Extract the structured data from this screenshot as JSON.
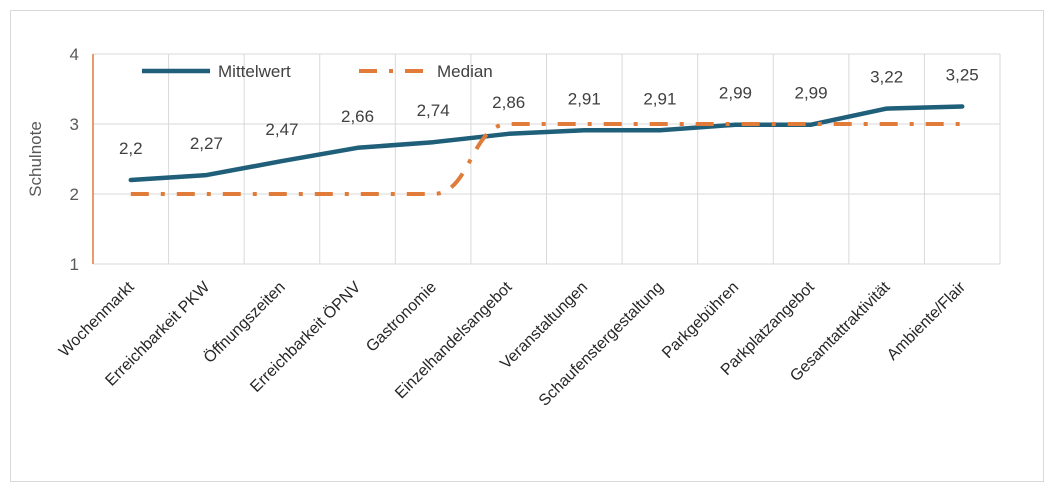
{
  "chart_data": {
    "type": "line",
    "ylabel": "Schulnote",
    "xlabel": "",
    "ylim": [
      1,
      4
    ],
    "yticks": [
      "1",
      "2",
      "3",
      "4"
    ],
    "grid": true,
    "legend_position": "top-left",
    "categories": [
      "Wochenmarkt",
      "Erreichbarkeit PKW",
      "Öffnungszeiten",
      "Erreichbarkeit ÖPNV",
      "Gastronomie",
      "Einzelhandelsangebot",
      "Veranstaltungen",
      "Schaufenstergestaltung",
      "Parkgebühren",
      "Parkplatzangebot",
      "Gesamtattraktivität",
      "Ambiente/Flair"
    ],
    "series": [
      {
        "name": "Mittelwert",
        "color": "#1f5f7a",
        "style": "solid",
        "values": [
          2.2,
          2.27,
          2.47,
          2.66,
          2.74,
          2.86,
          2.91,
          2.91,
          2.99,
          2.99,
          3.22,
          3.25
        ],
        "labels": [
          "2,2",
          "2,27",
          "2,47",
          "2,66",
          "2,74",
          "2,86",
          "2,91",
          "2,91",
          "2,99",
          "2,99",
          "3,22",
          "3,25"
        ]
      },
      {
        "name": "Median",
        "color": "#e07b39",
        "style": "dash-dot",
        "values": [
          2,
          2,
          2,
          2,
          2,
          3,
          3,
          3,
          3,
          3,
          3,
          3
        ]
      }
    ]
  }
}
